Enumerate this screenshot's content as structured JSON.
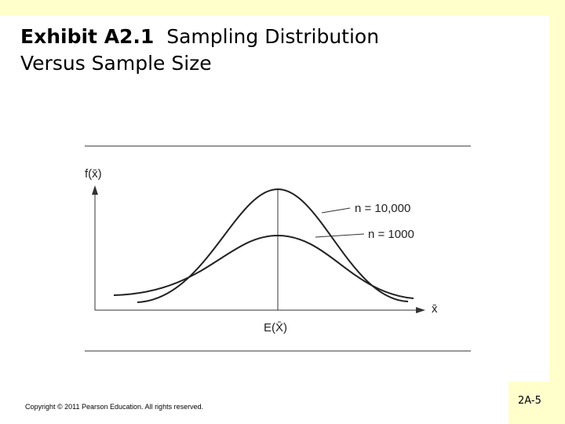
{
  "header": {
    "title_bold": "Exhibit A2.1",
    "title_rest": "Sampling Distribution",
    "title_line2": "Versus Sample Size"
  },
  "figure": {
    "y_axis_label": "f(x̄)",
    "x_axis_label": "x̄",
    "center_label": "E(X̄)",
    "curve_labels": [
      "n = 10,000",
      "n = 1000"
    ]
  },
  "footer": {
    "copyright": "Copyright © 2011 Pearson Education. All rights reserved.",
    "slide_number": "2A-5"
  }
}
